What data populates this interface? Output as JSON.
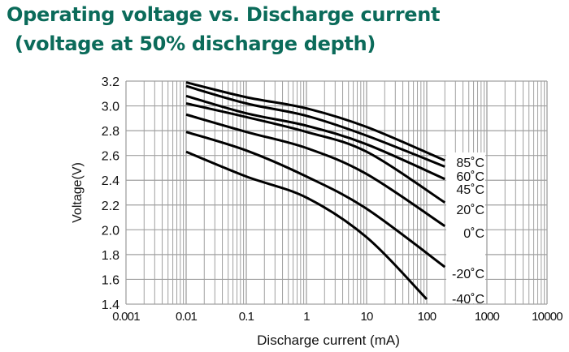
{
  "title_line1": "Operating voltage vs. Discharge current",
  "title_line2": " (voltage at 50% discharge depth)",
  "colors": {
    "title": "#0b6b5a",
    "grid": "#a0a0a0",
    "line": "#000000"
  },
  "chart_data": {
    "type": "line",
    "title": "Operating voltage vs. Discharge current (voltage at 50% discharge depth)",
    "xlabel": "Discharge current (mA)",
    "ylabel": "Voltage(V)",
    "xscale": "log",
    "xlim": [
      0.001,
      10000
    ],
    "ylim": [
      1.4,
      3.2
    ],
    "xticks": [
      "0.001",
      "0.01",
      "0.1",
      "1",
      "10",
      "100",
      "1000",
      "10000"
    ],
    "xtick_values": [
      0.001,
      0.01,
      0.1,
      1,
      10,
      100,
      1000,
      10000
    ],
    "yticks": [
      "1.4",
      "1.6",
      "1.8",
      "2.0",
      "2.2",
      "2.4",
      "2.6",
      "2.8",
      "3.0",
      "3.2"
    ],
    "ytick_values": [
      1.4,
      1.6,
      1.8,
      2.0,
      2.2,
      2.4,
      2.6,
      2.8,
      3.0,
      3.2
    ],
    "grid": true,
    "series": [
      {
        "name": "85˚C",
        "x": [
          0.01,
          0.1,
          1,
          10,
          200
        ],
        "y": [
          3.19,
          3.07,
          2.98,
          2.83,
          2.56
        ]
      },
      {
        "name": "60˚C",
        "x": [
          0.01,
          0.1,
          1,
          10,
          200
        ],
        "y": [
          3.16,
          3.02,
          2.92,
          2.76,
          2.51
        ]
      },
      {
        "name": "45˚C",
        "x": [
          0.01,
          0.1,
          1,
          10,
          200
        ],
        "y": [
          3.08,
          2.94,
          2.84,
          2.69,
          2.41
        ]
      },
      {
        "name": "20˚C",
        "x": [
          0.01,
          0.1,
          1,
          10,
          200
        ],
        "y": [
          3.02,
          2.91,
          2.79,
          2.63,
          2.22
        ]
      },
      {
        "name": "0˚C",
        "x": [
          0.01,
          0.1,
          1,
          10,
          200
        ],
        "y": [
          2.93,
          2.79,
          2.66,
          2.45,
          2.03
        ]
      },
      {
        "name": "-20˚C",
        "x": [
          0.01,
          0.1,
          1,
          10,
          200
        ],
        "y": [
          2.79,
          2.64,
          2.43,
          2.17,
          1.7
        ]
      },
      {
        "name": "-40˚C",
        "x": [
          0.01,
          0.1,
          1,
          10,
          100
        ],
        "y": [
          2.63,
          2.43,
          2.26,
          1.94,
          1.44
        ]
      }
    ]
  }
}
